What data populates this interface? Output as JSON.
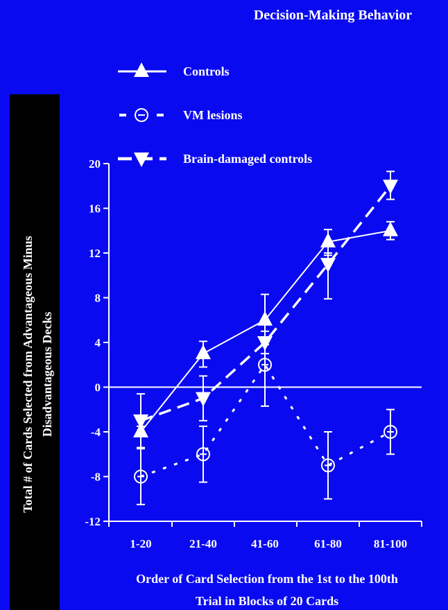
{
  "chart_data": {
    "type": "line",
    "title": "Decision-Making Behavior",
    "ylabel_lines": [
      "Total # of Cards Selected from Advantageous Minus",
      "Disadvantageous Decks"
    ],
    "xlabel_lines": [
      "Order of Card Selection from the 1st to the 100th",
      "Trial in Blocks of 20 Cards"
    ],
    "categories": [
      "1-20",
      "21-40",
      "41-60",
      "61-80",
      "81-100"
    ],
    "ylim": [
      -12,
      20
    ],
    "yticks": [
      -12,
      -8,
      -4,
      0,
      4,
      8,
      12,
      16,
      20
    ],
    "ytick_labels": [
      "-12",
      "-8",
      "-4",
      "0",
      "4",
      "8",
      "12",
      "16",
      "20"
    ],
    "zero_line": true,
    "legend_position": "top",
    "series": [
      {
        "name": "Controls",
        "marker": "triangle-up",
        "line_style": "solid",
        "values": [
          -4,
          3,
          6,
          13,
          14
        ],
        "error_low": [
          -5.5,
          1.8,
          3.8,
          11.8,
          13.2
        ],
        "error_high": [
          -3.5,
          4.1,
          8.3,
          14.1,
          14.8
        ]
      },
      {
        "name": "VM lesions",
        "marker": "circle-minus",
        "line_style": "dotted",
        "values": [
          -8,
          -6,
          2,
          -7,
          -4
        ],
        "error_low": [
          -10.5,
          -8.5,
          -1.7,
          -10,
          -6
        ],
        "error_high": [
          -5.5,
          -3.5,
          5.7,
          -4,
          -2
        ]
      },
      {
        "name": "Brain-damaged controls",
        "marker": "triangle-down",
        "line_style": "dashed",
        "values": [
          -3,
          -1,
          4,
          11,
          18
        ],
        "error_low": [
          -5.4,
          -3,
          3,
          7.9,
          16.8
        ],
        "error_high": [
          -0.6,
          1,
          5,
          12,
          19.3
        ]
      }
    ],
    "colors": {
      "background": "#0a0af0",
      "ylabel_panel": "#000000",
      "foreground": "#ffffff"
    }
  }
}
